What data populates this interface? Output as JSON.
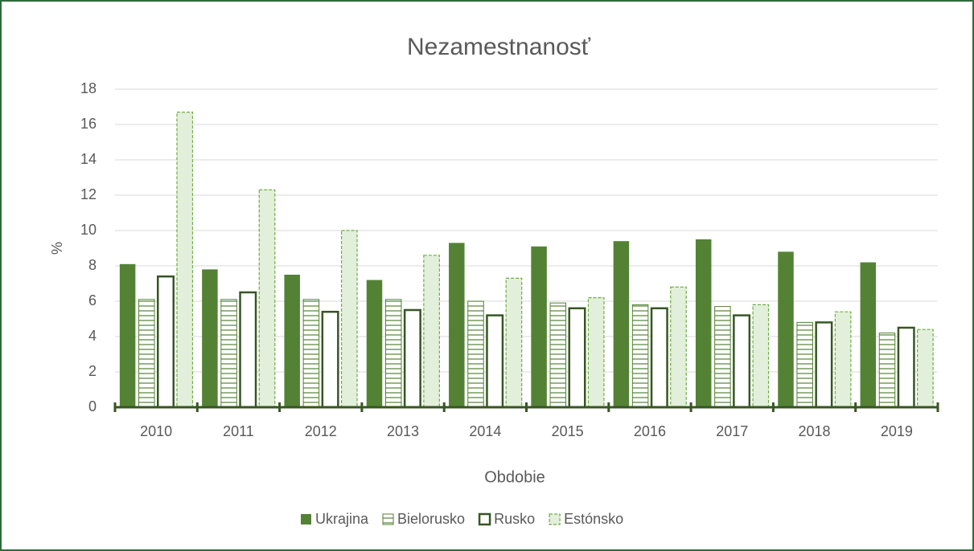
{
  "chart_data": {
    "type": "bar",
    "title": "Nezamestnanosť",
    "x_label": "Obdobie",
    "y_label": "%",
    "categories": [
      "2010",
      "2011",
      "2012",
      "2013",
      "2014",
      "2015",
      "2016",
      "2017",
      "2018",
      "2019"
    ],
    "series": [
      {
        "name": "Ukrajina",
        "color": "#548235",
        "values": [
          8.1,
          7.8,
          7.5,
          7.2,
          9.3,
          9.1,
          9.4,
          9.5,
          8.8,
          8.2
        ]
      },
      {
        "name": "Bielorusko",
        "color": "#548235",
        "values": [
          6.1,
          6.1,
          6.1,
          6.1,
          6.0,
          5.9,
          5.8,
          5.7,
          4.8,
          4.2
        ]
      },
      {
        "name": "Rusko",
        "color": "#375623",
        "values": [
          7.4,
          6.5,
          5.4,
          5.5,
          5.2,
          5.6,
          5.6,
          5.2,
          4.8,
          4.5
        ]
      },
      {
        "name": "Estónsko",
        "color": "#70ad47",
        "values": [
          16.7,
          12.3,
          10.0,
          8.6,
          7.3,
          6.2,
          6.8,
          5.8,
          5.4,
          4.4
        ]
      }
    ],
    "ylim": [
      0,
      18
    ],
    "yticks": [
      0,
      2,
      4,
      6,
      8,
      10,
      12,
      14,
      16,
      18
    ],
    "grid": true,
    "legend": "bottom"
  }
}
